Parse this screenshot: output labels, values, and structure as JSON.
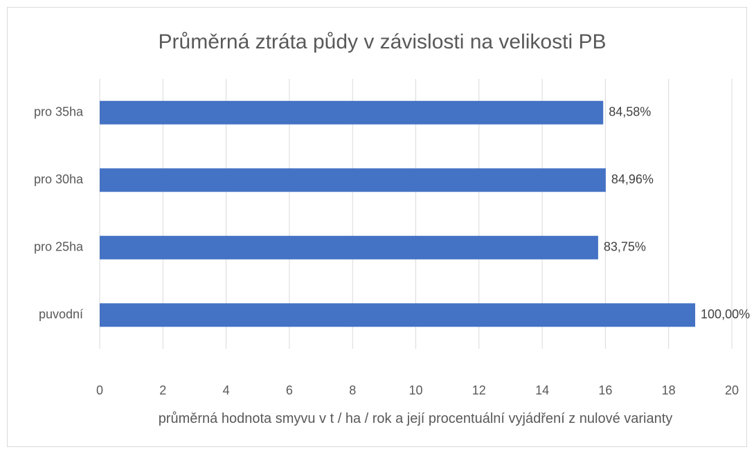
{
  "chart_data": {
    "type": "barh",
    "title": "Průměrná ztráta půdy v závislosti na velikosti PB",
    "x_label": "průměrná hodnota smyvu v t / ha / rok a její procentuální vyjádření z nulové varianty",
    "categories": [
      "puvodní",
      "pro 25ha",
      "pro 30ha",
      "pro 35ha"
    ],
    "values": [
      18.84,
      15.77,
      16.01,
      15.93
    ],
    "value_labels": [
      "100,00%",
      "83,75%",
      "84,96%",
      "84,58%"
    ],
    "color": "#4472c4",
    "xlim": [
      0,
      20
    ],
    "xticks": [
      0,
      2,
      4,
      6,
      8,
      10,
      12,
      14,
      16,
      18,
      20
    ],
    "grid": true
  }
}
